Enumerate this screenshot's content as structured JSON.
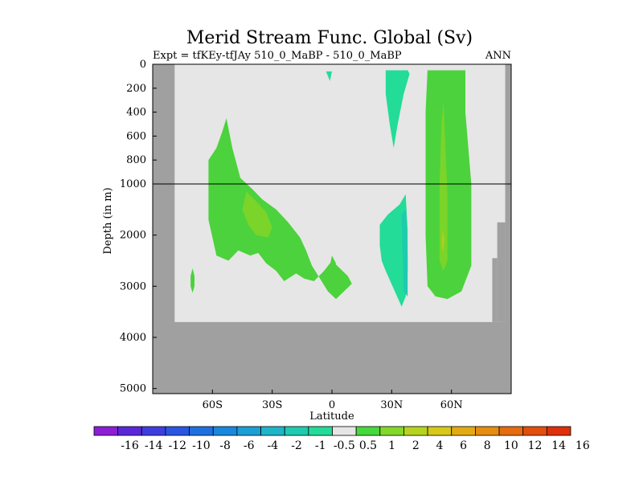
{
  "chart_data": {
    "type": "contour",
    "title": "Merid Stream Func. Global (Sv)",
    "subtitle": "Expt = tfKEy-tfJAy 510_0_MaBP - 510_0_MaBP",
    "season": "ANN",
    "xlabel": "Latitude",
    "ylabel": "Depth (in m)",
    "xlim": [
      -90,
      90
    ],
    "ylim": [
      5100,
      0
    ],
    "x_ticks": [
      {
        "value": -60,
        "label": "60S"
      },
      {
        "value": -30,
        "label": "30S"
      },
      {
        "value": 0,
        "label": "0"
      },
      {
        "value": 30,
        "label": "30N"
      },
      {
        "value": 60,
        "label": "60N"
      }
    ],
    "y_ticks": [
      {
        "value": 0,
        "label": "0"
      },
      {
        "value": 200,
        "label": "200"
      },
      {
        "value": 400,
        "label": "400"
      },
      {
        "value": 600,
        "label": "600"
      },
      {
        "value": 800,
        "label": "800"
      },
      {
        "value": 1000,
        "label": "1000"
      },
      {
        "value": 2000,
        "label": "2000"
      },
      {
        "value": 3000,
        "label": "3000"
      },
      {
        "value": 4000,
        "label": "4000"
      },
      {
        "value": 5000,
        "label": "5000"
      }
    ],
    "y_axis_break_depth": 1000,
    "ocean_domain": {
      "lat_min": -79,
      "lat_max": 87,
      "depth_max": 3700
    },
    "colorbar": {
      "levels": [
        "-16",
        "-14",
        "-12",
        "-10",
        "-8",
        "-6",
        "-4",
        "-2",
        "-1",
        "-0.5",
        "0.5",
        "1",
        "2",
        "4",
        "6",
        "8",
        "10",
        "12",
        "14",
        "16"
      ],
      "colors": [
        "#8c1ed6",
        "#5a28d8",
        "#3e3ee0",
        "#2a56e2",
        "#1f6fe0",
        "#1887de",
        "#1a9fd6",
        "#1eb5c8",
        "#1ecab0",
        "#22dc98",
        "#e6e6e6",
        "#46d83c",
        "#84d82a",
        "#b6d41e",
        "#d8c81a",
        "#e4aa14",
        "#e68c10",
        "#e66c0e",
        "#e24e0c",
        "#de300a"
      ]
    },
    "regions": [
      {
        "level": "0.5..1",
        "color": "#4cd23c",
        "points": [
          [
            -53,
            450
          ],
          [
            -50,
            700
          ],
          [
            -46,
            950
          ],
          [
            -40,
            1100
          ],
          [
            -35,
            1300
          ],
          [
            -28,
            1500
          ],
          [
            -22,
            1750
          ],
          [
            -16,
            2050
          ],
          [
            -13,
            2300
          ],
          [
            -10,
            2600
          ],
          [
            -6,
            2850
          ],
          [
            -2,
            3100
          ],
          [
            2,
            3250
          ],
          [
            6,
            3100
          ],
          [
            10,
            2950
          ],
          [
            8,
            2800
          ],
          [
            4,
            2650
          ],
          [
            0,
            2500
          ],
          [
            -4,
            2700
          ],
          [
            -9,
            2900
          ],
          [
            -14,
            2850
          ],
          [
            -18,
            2750
          ],
          [
            -24,
            2900
          ],
          [
            -28,
            2700
          ],
          [
            -33,
            2550
          ],
          [
            -37,
            2350
          ],
          [
            -41,
            2400
          ],
          [
            -47,
            2300
          ],
          [
            -52,
            2500
          ],
          [
            -58,
            2400
          ],
          [
            -62,
            1700
          ],
          [
            -62,
            800
          ],
          [
            -58,
            700
          ],
          [
            -55,
            560
          ]
        ]
      },
      {
        "level": "1..2",
        "color": "#7ad42a",
        "points": [
          [
            -43,
            1150
          ],
          [
            -39,
            1300
          ],
          [
            -33,
            1550
          ],
          [
            -30,
            1850
          ],
          [
            -32,
            2050
          ],
          [
            -38,
            2000
          ],
          [
            -42,
            1800
          ],
          [
            -45,
            1500
          ]
        ]
      },
      {
        "level": "0.5..1",
        "color": "#4cd23c",
        "points": [
          [
            -70,
            2650
          ],
          [
            -69,
            2800
          ],
          [
            -69,
            3000
          ],
          [
            -70,
            3130
          ],
          [
            -71,
            3000
          ],
          [
            -71,
            2800
          ]
        ]
      },
      {
        "level": "0.5..1",
        "color": "#4cd23c",
        "points": [
          [
            0,
            2400
          ],
          [
            2,
            2550
          ],
          [
            1,
            2700
          ],
          [
            -1,
            2600
          ]
        ]
      },
      {
        "level": "-0.5..-1",
        "color": "#22dc98",
        "points": [
          [
            -3,
            60
          ],
          [
            0,
            60
          ],
          [
            -1,
            140
          ]
        ]
      },
      {
        "level": "-0.5..-1",
        "color": "#22dc98",
        "points": [
          [
            27,
            50
          ],
          [
            38,
            50
          ],
          [
            39,
            80
          ],
          [
            36,
            250
          ],
          [
            33,
            500
          ],
          [
            31,
            700
          ],
          [
            29,
            500
          ],
          [
            27,
            250
          ]
        ]
      },
      {
        "level": "-0.5..-1",
        "color": "#22dc98",
        "points": [
          [
            24,
            1800
          ],
          [
            28,
            1600
          ],
          [
            34,
            1400
          ],
          [
            37,
            1200
          ],
          [
            38,
            1900
          ],
          [
            38,
            2700
          ],
          [
            37,
            3200
          ],
          [
            35,
            3400
          ],
          [
            31,
            3050
          ],
          [
            27,
            2700
          ],
          [
            25,
            2500
          ],
          [
            24,
            2200
          ]
        ]
      },
      {
        "level": "-1..-2",
        "color": "#1ecab0",
        "points": [
          [
            35,
            1600
          ],
          [
            37,
            1500
          ],
          [
            38,
            2400
          ],
          [
            38,
            3200
          ],
          [
            36,
            3100
          ]
        ]
      },
      {
        "level": "0.5..1",
        "color": "#4cd23c",
        "points": [
          [
            48,
            50
          ],
          [
            67,
            50
          ],
          [
            67,
            400
          ],
          [
            70,
            1000
          ],
          [
            70,
            2000
          ],
          [
            70,
            2600
          ],
          [
            65,
            3100
          ],
          [
            58,
            3250
          ],
          [
            52,
            3200
          ],
          [
            48,
            3000
          ],
          [
            47,
            2000
          ],
          [
            47,
            1000
          ],
          [
            47,
            400
          ]
        ]
      },
      {
        "level": "1..2",
        "color": "#7ad42a",
        "points": [
          [
            56,
            300
          ],
          [
            57,
            700
          ],
          [
            58,
            1200
          ],
          [
            58,
            2000
          ],
          [
            58,
            2500
          ],
          [
            56,
            2700
          ],
          [
            54,
            2500
          ],
          [
            54,
            1600
          ],
          [
            54,
            1000
          ],
          [
            55,
            500
          ]
        ]
      },
      {
        "level": "2..4",
        "color": "#a8d21e",
        "points": [
          [
            55.5,
            1900
          ],
          [
            56.5,
            2050
          ],
          [
            56,
            2350
          ],
          [
            55,
            2200
          ]
        ]
      }
    ]
  }
}
